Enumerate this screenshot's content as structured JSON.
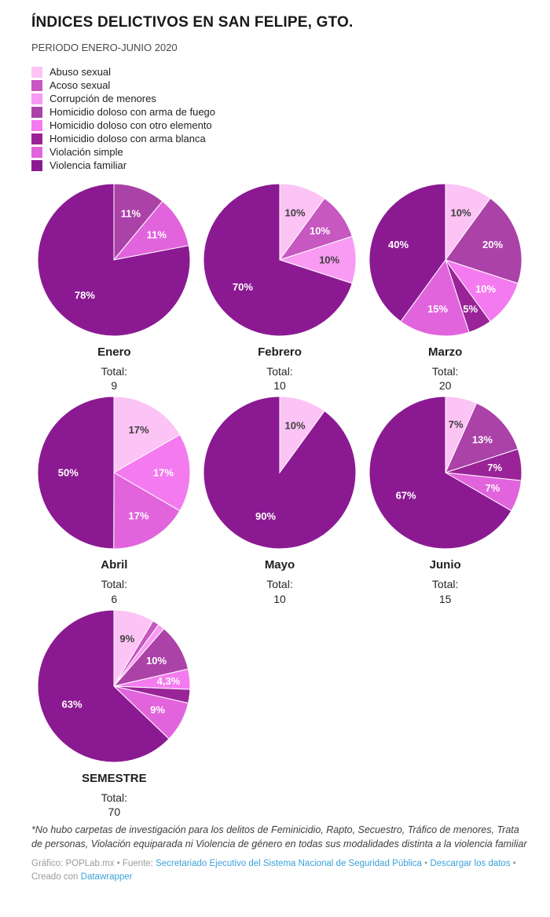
{
  "header": {
    "title": "ÍNDICES DELICTIVOS EN SAN FELIPE, GTO.",
    "subtitle": "PERIODO ENERO-JUNIO 2020"
  },
  "chart_data": {
    "type": "pie",
    "layout": "small-multiples, 3 columns, labels inside slices, no gridlines, legend top-left",
    "total_label": "Total:",
    "categories": [
      {
        "name": "Abuso sexual",
        "color": "#fcc3f5",
        "label_color": "#3f3f3f"
      },
      {
        "name": "Acoso sexual",
        "color": "#c757c1",
        "label_color": "#ffffff"
      },
      {
        "name": "Corrupción de menores",
        "color": "#f99af3",
        "label_color": "#3f3f3f"
      },
      {
        "name": "Homicidio doloso con arma de fuego",
        "color": "#ab42a8",
        "label_color": "#ffffff"
      },
      {
        "name": "Homicidio doloso con otro elemento",
        "color": "#f47bef",
        "label_color": "#ffffff"
      },
      {
        "name": "Homicidio doloso con arma blanca",
        "color": "#9a2397",
        "label_color": "#ffffff"
      },
      {
        "name": "Violación simple",
        "color": "#e264dd",
        "label_color": "#ffffff"
      },
      {
        "name": "Violencia familiar",
        "color": "#8b1a92",
        "label_color": "#ffffff"
      }
    ],
    "pies": [
      {
        "title": "Enero",
        "total": "9",
        "slices": [
          {
            "category": "Homicidio doloso con arma de fuego",
            "pct": 11,
            "label": "11%"
          },
          {
            "category": "Violación simple",
            "pct": 11,
            "label": "11%"
          },
          {
            "category": "Violencia familiar",
            "pct": 78,
            "label": "78%"
          }
        ]
      },
      {
        "title": "Febrero",
        "total": "10",
        "slices": [
          {
            "category": "Abuso sexual",
            "pct": 10,
            "label": "10%"
          },
          {
            "category": "Acoso sexual",
            "pct": 10,
            "label": "10%"
          },
          {
            "category": "Corrupción de menores",
            "pct": 10,
            "label": "10%"
          },
          {
            "category": "Violencia familiar",
            "pct": 70,
            "label": "70%"
          }
        ]
      },
      {
        "title": "Marzo",
        "total": "20",
        "slices": [
          {
            "category": "Abuso sexual",
            "pct": 10,
            "label": "10%"
          },
          {
            "category": "Homicidio doloso con arma de fuego",
            "pct": 20,
            "label": "20%"
          },
          {
            "category": "Homicidio doloso con otro elemento",
            "pct": 10,
            "label": "10%"
          },
          {
            "category": "Homicidio doloso con arma blanca",
            "pct": 5,
            "label": "5%"
          },
          {
            "category": "Violación simple",
            "pct": 15,
            "label": "15%"
          },
          {
            "category": "Violencia familiar",
            "pct": 40,
            "label": "40%"
          }
        ]
      },
      {
        "title": "Abril",
        "total": "6",
        "slices": [
          {
            "category": "Abuso sexual",
            "pct": 16.7,
            "label": "17%"
          },
          {
            "category": "Homicidio doloso con otro elemento",
            "pct": 16.7,
            "label": "17%"
          },
          {
            "category": "Violación simple",
            "pct": 16.7,
            "label": "17%"
          },
          {
            "category": "Violencia familiar",
            "pct": 50,
            "label": "50%"
          }
        ]
      },
      {
        "title": "Mayo",
        "total": "10",
        "slices": [
          {
            "category": "Abuso sexual",
            "pct": 10,
            "label": "10%"
          },
          {
            "category": "Violencia familiar",
            "pct": 90,
            "label": "90%"
          }
        ]
      },
      {
        "title": "Junio",
        "total": "15",
        "slices": [
          {
            "category": "Abuso sexual",
            "pct": 6.7,
            "label": "7%"
          },
          {
            "category": "Homicidio doloso con arma de fuego",
            "pct": 13.3,
            "label": "13%"
          },
          {
            "category": "Homicidio doloso con arma blanca",
            "pct": 6.7,
            "label": "7%"
          },
          {
            "category": "Violación simple",
            "pct": 6.7,
            "label": "7%"
          },
          {
            "category": "Violencia familiar",
            "pct": 66.7,
            "label": "67%"
          }
        ]
      },
      {
        "title": "SEMESTRE",
        "total": "70",
        "slices": [
          {
            "category": "Abuso sexual",
            "pct": 8.6,
            "label": "9%"
          },
          {
            "category": "Acoso sexual",
            "pct": 1.4,
            "label": ""
          },
          {
            "category": "Corrupción de menores",
            "pct": 1.4,
            "label": ""
          },
          {
            "category": "Homicidio doloso con arma de fuego",
            "pct": 10,
            "label": "10%"
          },
          {
            "category": "Homicidio doloso con otro elemento",
            "pct": 4.3,
            "label": "4,3%"
          },
          {
            "category": "Homicidio doloso con arma blanca",
            "pct": 2.9,
            "label": ""
          },
          {
            "category": "Violación simple",
            "pct": 8.6,
            "label": "9%"
          },
          {
            "category": "Violencia familiar",
            "pct": 62.9,
            "label": "63%"
          }
        ]
      }
    ]
  },
  "footer": {
    "note": "*No hubo carpetas de investigación para los delitos de Feminicidio, Rapto, Secuestro, Tráfico de menores, Trata de personas, Violación equiparada ni Violencia de género en todas sus modalidades distinta a la violencia familiar",
    "credit_prefix": "Gráfico: POPLab.mx • Fuente: ",
    "source_link": "Secretariado Ejecutivo del Sistema Nacional de Seguridad Pública",
    "sep1": " • ",
    "download_link": "Descargar los datos",
    "sep2": " • ",
    "created_with": "Creado con ",
    "datawrapper_link": "Datawrapper"
  }
}
